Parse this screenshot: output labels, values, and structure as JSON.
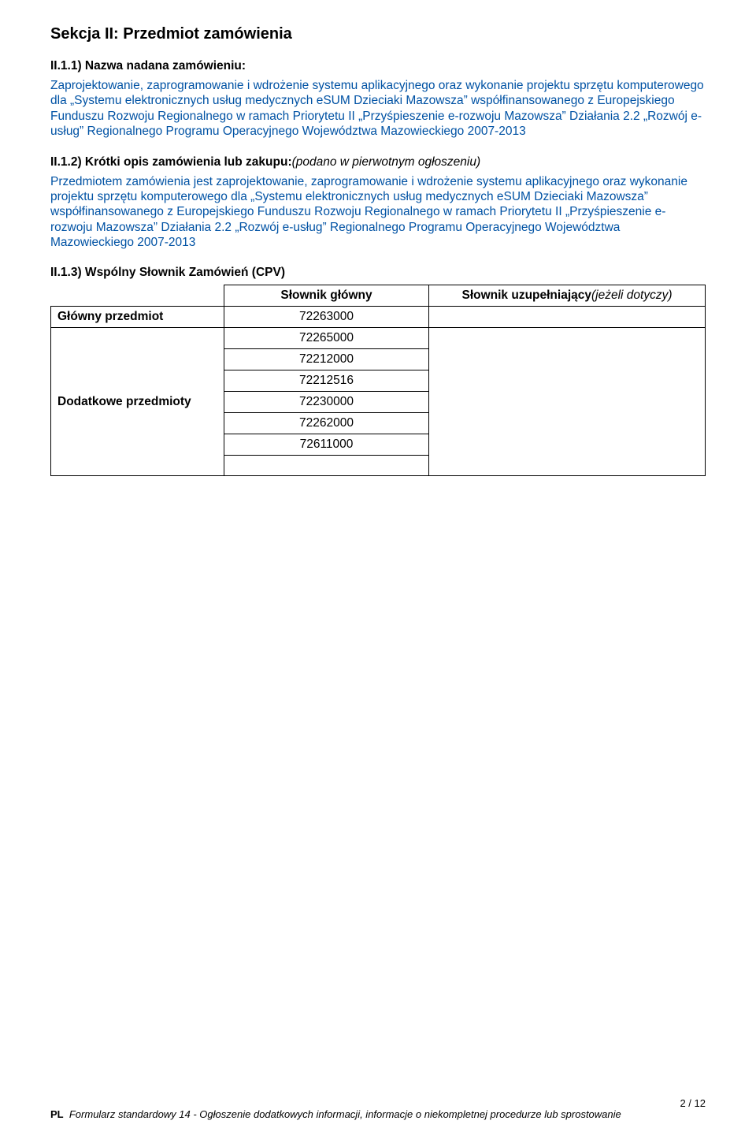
{
  "section": {
    "title": "Sekcja II: Przedmiot zamówienia"
  },
  "sub1": {
    "heading": "II.1.1) Nazwa nadana zamówieniu:",
    "text": "Zaprojektowanie, zaprogramowanie i wdrożenie systemu aplikacyjnego oraz wykonanie projektu sprzętu komputerowego dla „Systemu elektronicznych usług medycznych eSUM Dzieciaki Mazowsza” współfinansowanego z Europejskiego Funduszu Rozwoju Regionalnego w ramach Priorytetu II „Przyśpieszenie e-rozwoju Mazowsza” Działania 2.2 „Rozwój e-usług” Regionalnego Programu Operacyjnego Województwa Mazowieckiego 2007-2013"
  },
  "sub2": {
    "heading_bold": "II.1.2) Krótki opis zamówienia lub zakupu:",
    "heading_italic": "(podano w pierwotnym ogłoszeniu)",
    "text": "Przedmiotem zamówienia jest zaprojektowanie, zaprogramowanie i wdrożenie systemu aplikacyjnego oraz wykonanie projektu sprzętu komputerowego dla „Systemu elektronicznych usług medycznych eSUM Dzieciaki Mazowsza” współfinansowanego z Europejskiego Funduszu Rozwoju Regionalnego w ramach Priorytetu II „Przyśpieszenie e-rozwoju Mazowsza” Działania 2.2 „Rozwój e-usług” Regionalnego Programu Operacyjnego Województwa Mazowieckiego 2007-2013"
  },
  "sub3": {
    "heading": "II.1.3) Wspólny Słownik Zamówień (CPV)",
    "table": {
      "col_main": "Słownik główny",
      "col_supp_prefix": "Słownik uzupełniający",
      "col_supp_note": "(jeżeli dotyczy)",
      "row_main_label": "Główny przedmiot",
      "row_additional_label": "Dodatkowe przedmioty",
      "main_code": "72263000",
      "additional_codes": [
        "72265000",
        "72212000",
        "72212516",
        "72230000",
        "72262000",
        "72611000"
      ]
    }
  },
  "footer": {
    "lang": "PL",
    "title": "Formularz standardowy 14 - Ogłoszenie dodatkowych informacji, informacje o niekompletnej procedurze lub sprostowanie",
    "page": "2 / 12"
  },
  "colors": {
    "body_text": "#0052a4",
    "heading": "#000000",
    "border": "#000000",
    "background": "#ffffff"
  },
  "typography": {
    "section_title_pt": 20,
    "subsection_pt": 15.5,
    "body_pt": 15.5,
    "footer_pt": 13,
    "font_family": "Arial"
  }
}
